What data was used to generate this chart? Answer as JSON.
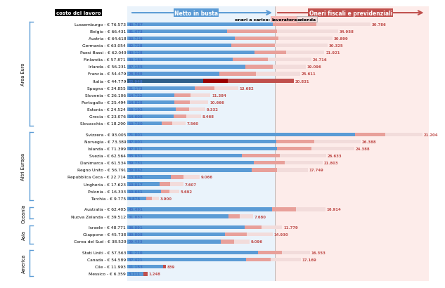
{
  "groups": [
    {
      "name": "Area Euro",
      "countries": [
        {
          "label": "Lussemburgo - € 76.573",
          "netto": 45787,
          "lavoratore": 0,
          "azienda": 30786
        },
        {
          "label": "Belgio - € 66.431",
          "netto": 31473,
          "lavoratore": 0,
          "azienda": 34958
        },
        {
          "label": "Austria - € 64.618",
          "netto": 33719,
          "lavoratore": 0,
          "azienda": 30899
        },
        {
          "label": "Germania - € 63.054",
          "netto": 32728,
          "lavoratore": 0,
          "azienda": 30325
        },
        {
          "label": "Paesi Bassi - € 62.049",
          "netto": 40128,
          "lavoratore": 0,
          "azienda": 21921
        },
        {
          "label": "Finlandia - € 57.871",
          "netto": 33155,
          "lavoratore": 0,
          "azienda": 24716
        },
        {
          "label": "Irlanda - € 56.231",
          "netto": 37135,
          "lavoratore": 0,
          "azienda": 19096
        },
        {
          "label": "Francia - € 54.479",
          "netto": 28869,
          "lavoratore": 0,
          "azienda": 25611
        },
        {
          "label": "Italia - € 44.779",
          "netto": 23948,
          "lavoratore": 7562,
          "azienda": 20831,
          "highlight": true
        },
        {
          "label": "Spagna - € 34.855",
          "netto": 21173,
          "lavoratore": 0,
          "azienda": 13682
        },
        {
          "label": "Slovenia - € 26.106",
          "netto": 14722,
          "lavoratore": 0,
          "azienda": 11384
        },
        {
          "label": "Portogallo - € 25.494",
          "netto": 14828,
          "lavoratore": 0,
          "azienda": 10666
        },
        {
          "label": "Estonia - € 24.524",
          "netto": 15192,
          "lavoratore": 0,
          "azienda": 9332
        },
        {
          "label": "Grecia - € 23.076",
          "netto": 14608,
          "lavoratore": 0,
          "azienda": 8468
        },
        {
          "label": "Slovacchia - € 18.290",
          "netto": 10730,
          "lavoratore": 0,
          "azienda": 7560
        }
      ]
    },
    {
      "name": "Altri Europa",
      "countries": [
        {
          "label": "Svizzera - € 93.005",
          "netto": 71801,
          "lavoratore": 0,
          "azienda": 21204
        },
        {
          "label": "Norvegia - € 73.389",
          "netto": 47001,
          "lavoratore": 0,
          "azienda": 26388
        },
        {
          "label": "Islanda - € 71.399",
          "netto": 47011,
          "lavoratore": 0,
          "azienda": 24388
        },
        {
          "label": "Svezia - € 62.564",
          "netto": 35931,
          "lavoratore": 0,
          "azienda": 26633
        },
        {
          "label": "Danimarca - € 61.534",
          "netto": 39731,
          "lavoratore": 0,
          "azienda": 21803
        },
        {
          "label": "Regno Unito - € 56.791",
          "netto": 39042,
          "lavoratore": 0,
          "azienda": 17749
        },
        {
          "label": "Repubblica Ceca - € 22.714",
          "netto": 13648,
          "lavoratore": 0,
          "azienda": 9066
        },
        {
          "label": "Ungheria - € 17.623",
          "netto": 10017,
          "lavoratore": 0,
          "azienda": 7607
        },
        {
          "label": "Polonia - € 16.333",
          "netto": 10641,
          "lavoratore": 0,
          "azienda": 5692
        },
        {
          "label": "Turchia - € 9.775",
          "netto": 5875,
          "lavoratore": 0,
          "azienda": 3900
        }
      ]
    },
    {
      "name": "Oceania",
      "countries": [
        {
          "label": "Australia - € 62.405",
          "netto": 45491,
          "lavoratore": 0,
          "azienda": 16914
        },
        {
          "label": "Nuova Zelanda - € 39.512",
          "netto": 31833,
          "lavoratore": 0,
          "azienda": 7680
        }
      ]
    },
    {
      "name": "Asia",
      "countries": [
        {
          "label": "Israele - € 48.771",
          "netto": 36991,
          "lavoratore": 0,
          "azienda": 11779
        },
        {
          "label": "Giappone - € 45.738",
          "netto": 30808,
          "lavoratore": 0,
          "azienda": 14930
        },
        {
          "label": "Corea del Sud - € 38.529",
          "netto": 29433,
          "lavoratore": 0,
          "azienda": 9096
        }
      ]
    },
    {
      "name": "America",
      "countries": [
        {
          "label": "Stati Uniti - € 57.563",
          "netto": 41210,
          "lavoratore": 0,
          "azienda": 16353
        },
        {
          "label": "Canada - € 54.589",
          "netto": 37421,
          "lavoratore": 0,
          "azienda": 17169
        },
        {
          "label": "Cile - € 11.993",
          "netto": 11153,
          "lavoratore": 839,
          "azienda": 0
        },
        {
          "label": "Messico - € 6.359",
          "netto": 5111,
          "lavoratore": 1248,
          "azienda": 0
        }
      ]
    }
  ],
  "color_netto": "#5B9BD5",
  "color_netto_italia": "#2E5F8A",
  "color_lavoratore_italia": "#9B0000",
  "color_azienda_italia": "#C0504D",
  "color_lavoratore_other": "#C0504D",
  "color_azienda_light": "#F2DCDB",
  "color_azienda_med": "#E8A09A",
  "color_bracket": "#5B9BD5",
  "color_val_netto": "#4472C4",
  "color_val_oneri": "#C0504D"
}
